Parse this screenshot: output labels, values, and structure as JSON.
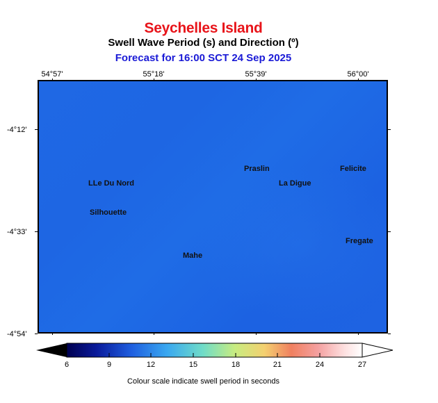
{
  "title": "Seychelles Island",
  "subtitle": "Swell Wave Period (s) and Direction (º)",
  "forecast": "Forecast for  16:00 SCT 24 Sep 2025",
  "map": {
    "longitude_labels": [
      "54°57'",
      "55°18'",
      "55°39'",
      "56°00'"
    ],
    "latitude_labels": [
      "-4°12'",
      "-4°33'",
      "-4°54'"
    ],
    "places": [
      {
        "name": "LLe Du Nord"
      },
      {
        "name": "Silhouette"
      },
      {
        "name": "Praslin"
      },
      {
        "name": "La Digue"
      },
      {
        "name": "Felicite"
      },
      {
        "name": "Fregate"
      },
      {
        "name": "Mahe"
      }
    ],
    "sea_color": "#1f68e4"
  },
  "colorbar": {
    "labels": [
      "6",
      "9",
      "12",
      "15",
      "18",
      "21",
      "24",
      "27"
    ],
    "range": [
      6,
      27
    ],
    "colors": [
      "#000050",
      "#0a1a9a",
      "#1f5fe0",
      "#3aa8f0",
      "#6fdcc8",
      "#c8ec80",
      "#f4d070",
      "#f08060",
      "#f4a0a0",
      "#fde0e0",
      "#ffffff"
    ],
    "caption": "Colour scale indicate swell period in seconds"
  }
}
